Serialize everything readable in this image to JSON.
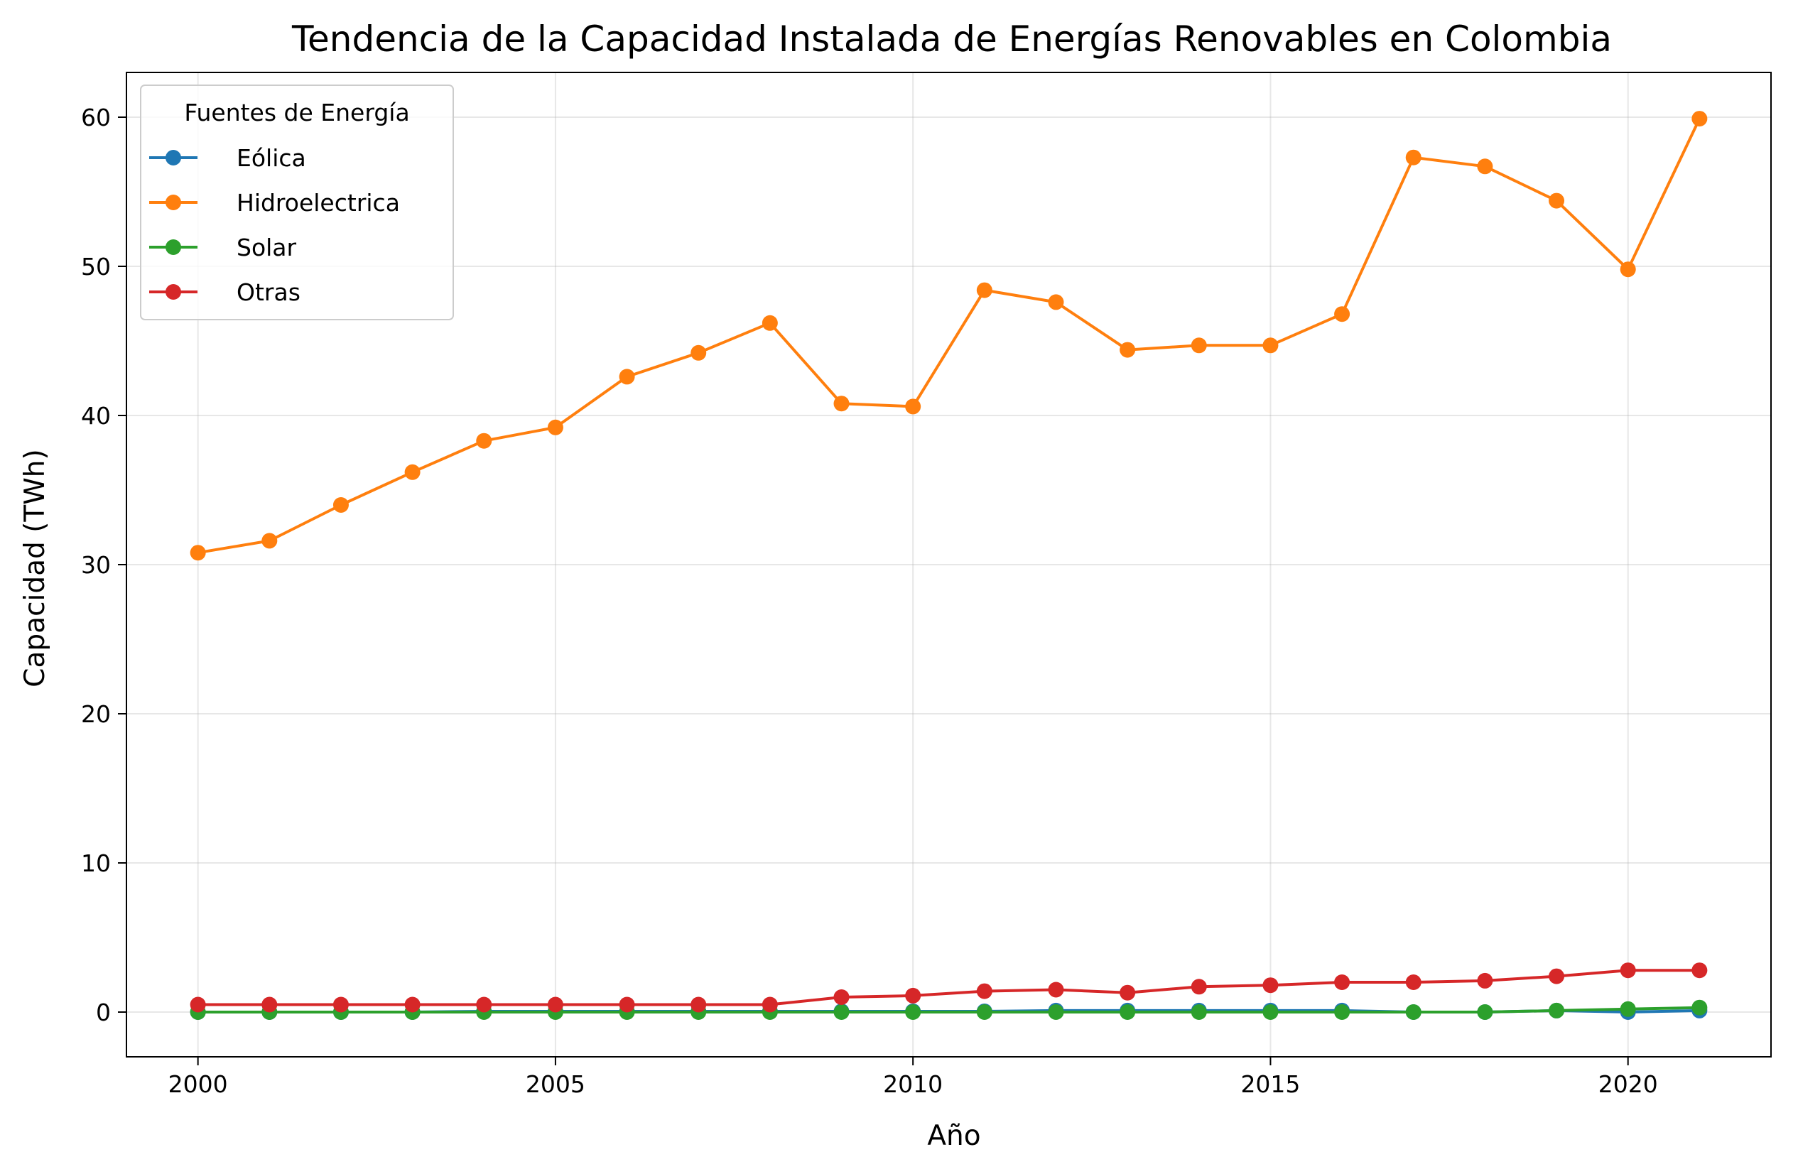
{
  "chart_data": {
    "type": "line",
    "title": "Tendencia de la Capacidad Instalada de Energías Renovables en Colombia",
    "xlabel": "Año",
    "ylabel": "Capacidad (TWh)",
    "xlim": [
      1999,
      2022
    ],
    "ylim": [
      -3,
      63
    ],
    "x_ticks": [
      2000,
      2005,
      2010,
      2015,
      2020
    ],
    "y_ticks": [
      0,
      10,
      20,
      30,
      40,
      50,
      60
    ],
    "grid": true,
    "legend": {
      "title": "Fuentes de Energía",
      "placement": "top-left"
    },
    "x": [
      2000,
      2001,
      2002,
      2003,
      2004,
      2005,
      2006,
      2007,
      2008,
      2009,
      2010,
      2011,
      2012,
      2013,
      2014,
      2015,
      2016,
      2017,
      2018,
      2019,
      2020,
      2021
    ],
    "series": [
      {
        "name": "Eólica",
        "color": "#1f77b4",
        "values": [
          0.0,
          0.0,
          0.0,
          0.0,
          0.05,
          0.05,
          0.05,
          0.05,
          0.05,
          0.05,
          0.05,
          0.05,
          0.1,
          0.1,
          0.1,
          0.1,
          0.1,
          0.0,
          0.0,
          0.1,
          0.0,
          0.1
        ]
      },
      {
        "name": "Hidroelectrica",
        "color": "#ff7f0e",
        "values": [
          30.8,
          31.6,
          34.0,
          36.2,
          38.3,
          39.2,
          42.6,
          44.2,
          46.2,
          40.8,
          40.6,
          48.4,
          47.6,
          44.4,
          44.7,
          44.7,
          46.8,
          57.3,
          56.7,
          54.4,
          49.8,
          59.9
        ]
      },
      {
        "name": "Solar",
        "color": "#2ca02c",
        "values": [
          0.0,
          0.0,
          0.0,
          0.0,
          0.0,
          0.0,
          0.0,
          0.0,
          0.0,
          0.0,
          0.0,
          0.0,
          0.0,
          0.0,
          0.0,
          0.0,
          0.0,
          0.0,
          0.0,
          0.1,
          0.2,
          0.3
        ]
      },
      {
        "name": "Otras",
        "color": "#d62728",
        "values": [
          0.5,
          0.5,
          0.5,
          0.5,
          0.5,
          0.5,
          0.5,
          0.5,
          0.5,
          1.0,
          1.1,
          1.4,
          1.5,
          1.3,
          1.7,
          1.8,
          2.0,
          2.0,
          2.1,
          2.4,
          2.8,
          2.8
        ]
      }
    ]
  }
}
